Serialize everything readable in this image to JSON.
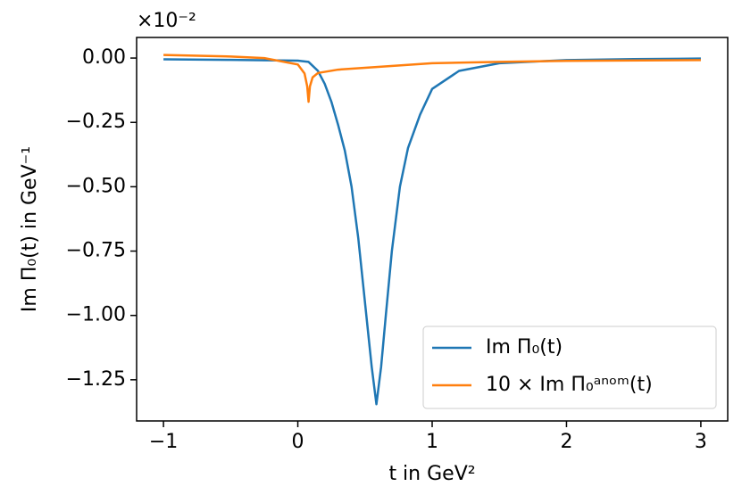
{
  "chart_data": {
    "type": "line",
    "xlabel": "t in GeV²",
    "ylabel": "Im Π₀(t) in GeV⁻¹",
    "y_offset_label": "×10⁻²",
    "xlim": [
      -1.2,
      3.2
    ],
    "ylim": [
      -1.41,
      0.08
    ],
    "xticks": [
      {
        "value": -1,
        "label": "−1"
      },
      0,
      1,
      2,
      3
    ],
    "yticks": [
      {
        "value": 0,
        "label": "0.00"
      },
      {
        "value": -0.25,
        "label": "−0.25"
      },
      {
        "value": -0.5,
        "label": "−0.50"
      },
      {
        "value": -0.75,
        "label": "−0.75"
      },
      {
        "value": -1,
        "label": "−1.00"
      },
      {
        "value": -1.25,
        "label": "−1.25"
      }
    ],
    "legend": "lower right",
    "series": [
      {
        "name": "Im Π₀(t)",
        "color": "#1f77b4",
        "x": [
          -1,
          -0.5,
          0,
          0.08,
          0.15,
          0.2,
          0.25,
          0.3,
          0.35,
          0.4,
          0.45,
          0.5,
          0.55,
          0.585,
          0.62,
          0.655,
          0.7,
          0.76,
          0.82,
          0.91,
          1.0,
          1.2,
          1.5,
          2.0,
          2.5,
          3.0
        ],
        "values": [
          -0.005,
          -0.007,
          -0.01,
          -0.015,
          -0.05,
          -0.1,
          -0.17,
          -0.26,
          -0.36,
          -0.5,
          -0.7,
          -0.95,
          -1.2,
          -1.345,
          -1.2,
          -1.0,
          -0.75,
          -0.5,
          -0.35,
          -0.22,
          -0.12,
          -0.05,
          -0.02,
          -0.008,
          -0.004,
          -0.002
        ]
      },
      {
        "name": "10 × Im Π₀ᵃⁿᵒᵐ(t)",
        "color": "#ff7f0e",
        "x": [
          -1,
          -0.5,
          -0.25,
          0,
          0.05,
          0.07,
          0.08,
          0.09,
          0.11,
          0.15,
          0.3,
          0.5,
          1.0,
          1.5,
          2.0,
          3.0
        ],
        "values": [
          0.012,
          0.006,
          0,
          -0.025,
          -0.06,
          -0.11,
          -0.17,
          -0.11,
          -0.075,
          -0.058,
          -0.045,
          -0.038,
          -0.02,
          -0.015,
          -0.011,
          -0.008
        ]
      }
    ]
  }
}
